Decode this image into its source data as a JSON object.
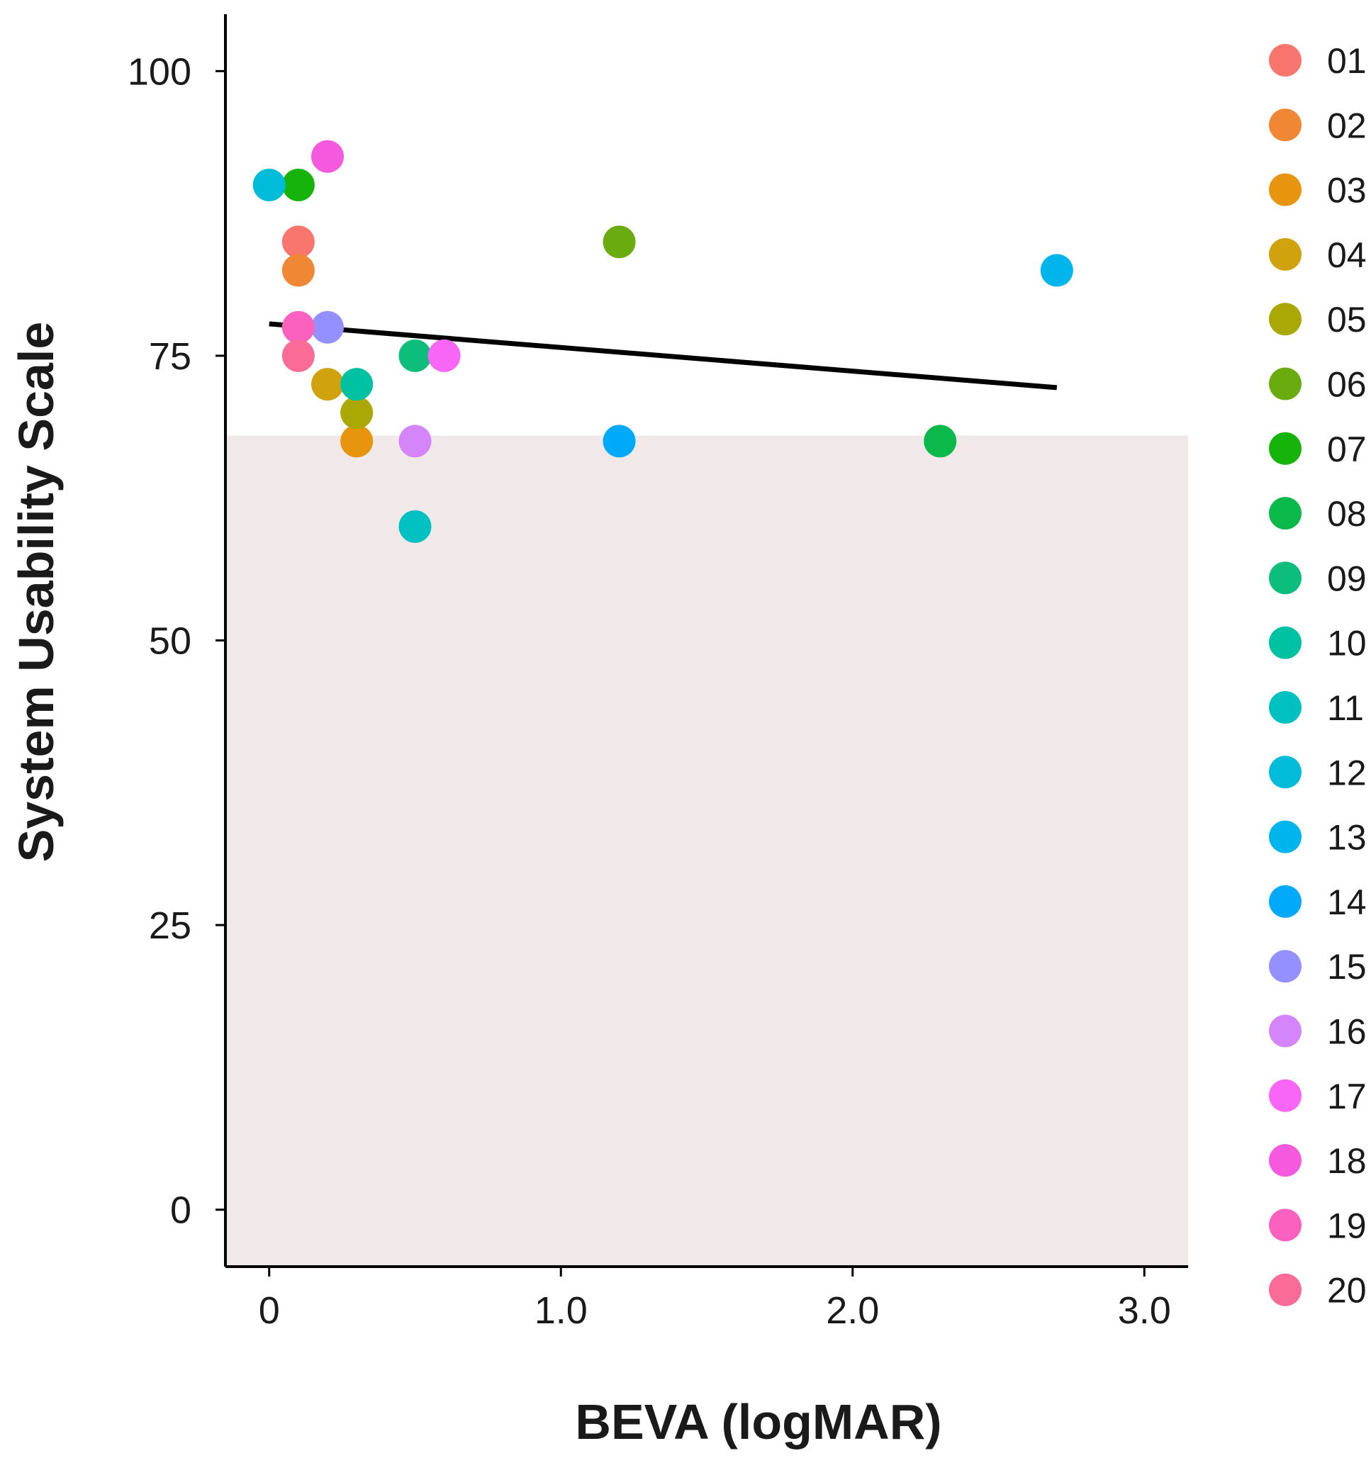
{
  "chart_data": {
    "type": "scatter",
    "title": "",
    "xlabel": "BEVA (logMAR)",
    "ylabel": "System Usability Scale",
    "xlim": [
      -0.15,
      3.15
    ],
    "ylim": [
      -5,
      105
    ],
    "x_ticks": [
      0,
      1,
      2,
      3
    ],
    "x_tick_labels": [
      "0",
      "1.0",
      "2.0",
      "3.0"
    ],
    "y_ticks": [
      0,
      25,
      50,
      75,
      100
    ],
    "y_tick_labels": [
      "0",
      "25",
      "50",
      "75",
      "100"
    ],
    "grid": false,
    "legend_position": "right",
    "shaded_region": {
      "y_from": -5,
      "y_to": 68,
      "color": "#f1e9e9"
    },
    "trend_line": {
      "x": [
        0,
        2.7
      ],
      "y": [
        77.8,
        72.2
      ],
      "color": "#000000"
    },
    "series": [
      {
        "name": "01",
        "color": "#F8766D",
        "points": [
          [
            0.1,
            85
          ]
        ]
      },
      {
        "name": "02",
        "color": "#F08734",
        "points": [
          [
            0.1,
            82.5
          ]
        ]
      },
      {
        "name": "03",
        "color": "#E7940E",
        "points": [
          [
            0.3,
            67.5
          ]
        ]
      },
      {
        "name": "04",
        "color": "#CFA20E",
        "points": [
          [
            0.2,
            72.5
          ]
        ]
      },
      {
        "name": "05",
        "color": "#A9A805",
        "points": [
          [
            0.3,
            70
          ]
        ]
      },
      {
        "name": "06",
        "color": "#6AAB10",
        "points": [
          [
            1.2,
            85
          ]
        ]
      },
      {
        "name": "07",
        "color": "#16B40A",
        "points": [
          [
            0.1,
            90
          ]
        ]
      },
      {
        "name": "08",
        "color": "#0BB84A",
        "points": [
          [
            2.3,
            67.5
          ]
        ]
      },
      {
        "name": "09",
        "color": "#0CBD7B",
        "points": [
          [
            0.5,
            75
          ]
        ]
      },
      {
        "name": "10",
        "color": "#00C2A2",
        "points": [
          [
            0.3,
            72.5
          ]
        ]
      },
      {
        "name": "11",
        "color": "#00C0C1",
        "points": [
          [
            0.5,
            60
          ]
        ]
      },
      {
        "name": "12",
        "color": "#00BCD8",
        "points": [
          [
            0,
            90
          ]
        ]
      },
      {
        "name": "13",
        "color": "#00B5EC",
        "points": [
          [
            2.7,
            82.5
          ]
        ]
      },
      {
        "name": "14",
        "color": "#00A9FA",
        "points": [
          [
            1.2,
            67.5
          ]
        ]
      },
      {
        "name": "15",
        "color": "#9590FF",
        "points": [
          [
            0.2,
            77.5
          ]
        ]
      },
      {
        "name": "16",
        "color": "#D585FA",
        "points": [
          [
            0.5,
            67.5
          ]
        ]
      },
      {
        "name": "17",
        "color": "#F866F5",
        "points": [
          [
            0.6,
            75
          ]
        ]
      },
      {
        "name": "18",
        "color": "#F459DE",
        "points": [
          [
            0.2,
            92.5
          ]
        ]
      },
      {
        "name": "19",
        "color": "#FB61BE",
        "points": [
          [
            0.1,
            77.5
          ]
        ]
      },
      {
        "name": "20",
        "color": "#FB6B98",
        "points": [
          [
            0.1,
            75
          ]
        ]
      }
    ]
  }
}
